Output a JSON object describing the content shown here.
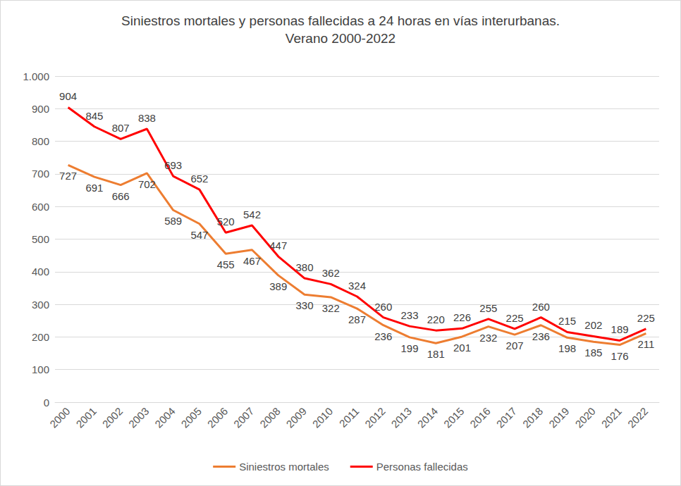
{
  "chart_data": {
    "type": "line",
    "title": "Siniestros mortales y personas fallecidas a 24 horas en vías interurbanas.",
    "subtitle": "Verano 2000-2022",
    "categories": [
      "2000",
      "2001",
      "2002",
      "2003",
      "2004",
      "2005",
      "2006",
      "2007",
      "2008",
      "2009",
      "2010",
      "2011",
      "2012",
      "2013",
      "2014",
      "2015",
      "2016",
      "2017",
      "2018",
      "2019",
      "2020",
      "2021",
      "2022"
    ],
    "series": [
      {
        "name": "Siniestros mortales",
        "color": "#ed7d31",
        "values": [
          727,
          691,
          666,
          702,
          589,
          547,
          455,
          467,
          389,
          330,
          322,
          287,
          236,
          199,
          181,
          201,
          232,
          207,
          236,
          198,
          185,
          176,
          211
        ]
      },
      {
        "name": "Personas fallecidas",
        "color": "#ff0000",
        "values": [
          904,
          845,
          807,
          838,
          693,
          652,
          520,
          542,
          447,
          380,
          362,
          324,
          260,
          233,
          220,
          226,
          255,
          225,
          260,
          215,
          202,
          189,
          225
        ]
      }
    ],
    "ylim": [
      0,
      1000
    ],
    "yticks": [
      0,
      100,
      200,
      300,
      400,
      500,
      600,
      700,
      800,
      900,
      {
        "value": 1000,
        "label": "1.000"
      }
    ],
    "grid": true,
    "legend": "bottom",
    "data_labels": true
  }
}
